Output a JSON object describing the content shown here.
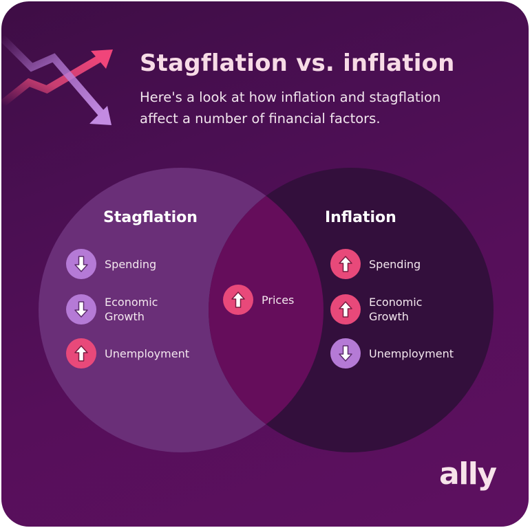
{
  "header": {
    "title": "Stagflation vs. inflation",
    "subtitle": "Here's a look at how inflation and stagflation\naffect a number of financial factors."
  },
  "venn": {
    "left_heading": "Stagflation",
    "right_heading": "Inflation",
    "left_items": [
      {
        "label": "Spending",
        "direction": "down"
      },
      {
        "label": "Economic\nGrowth",
        "direction": "down"
      },
      {
        "label": "Unemployment",
        "direction": "up"
      }
    ],
    "overlap_item": {
      "label": "Prices",
      "direction": "up"
    },
    "right_items": [
      {
        "label": "Spending",
        "direction": "up"
      },
      {
        "label": "Economic\nGrowth",
        "direction": "up"
      },
      {
        "label": "Unemployment",
        "direction": "down"
      }
    ]
  },
  "brand": {
    "logo_text": "ally"
  },
  "colors": {
    "up_badge": "#e8497a",
    "down_badge": "#b57ad6",
    "left_circle": "#6a2f78",
    "right_circle": "#330f3c",
    "overlap": "#650d5b"
  },
  "icons": {
    "up": "arrow-up-icon",
    "down": "arrow-down-icon"
  }
}
